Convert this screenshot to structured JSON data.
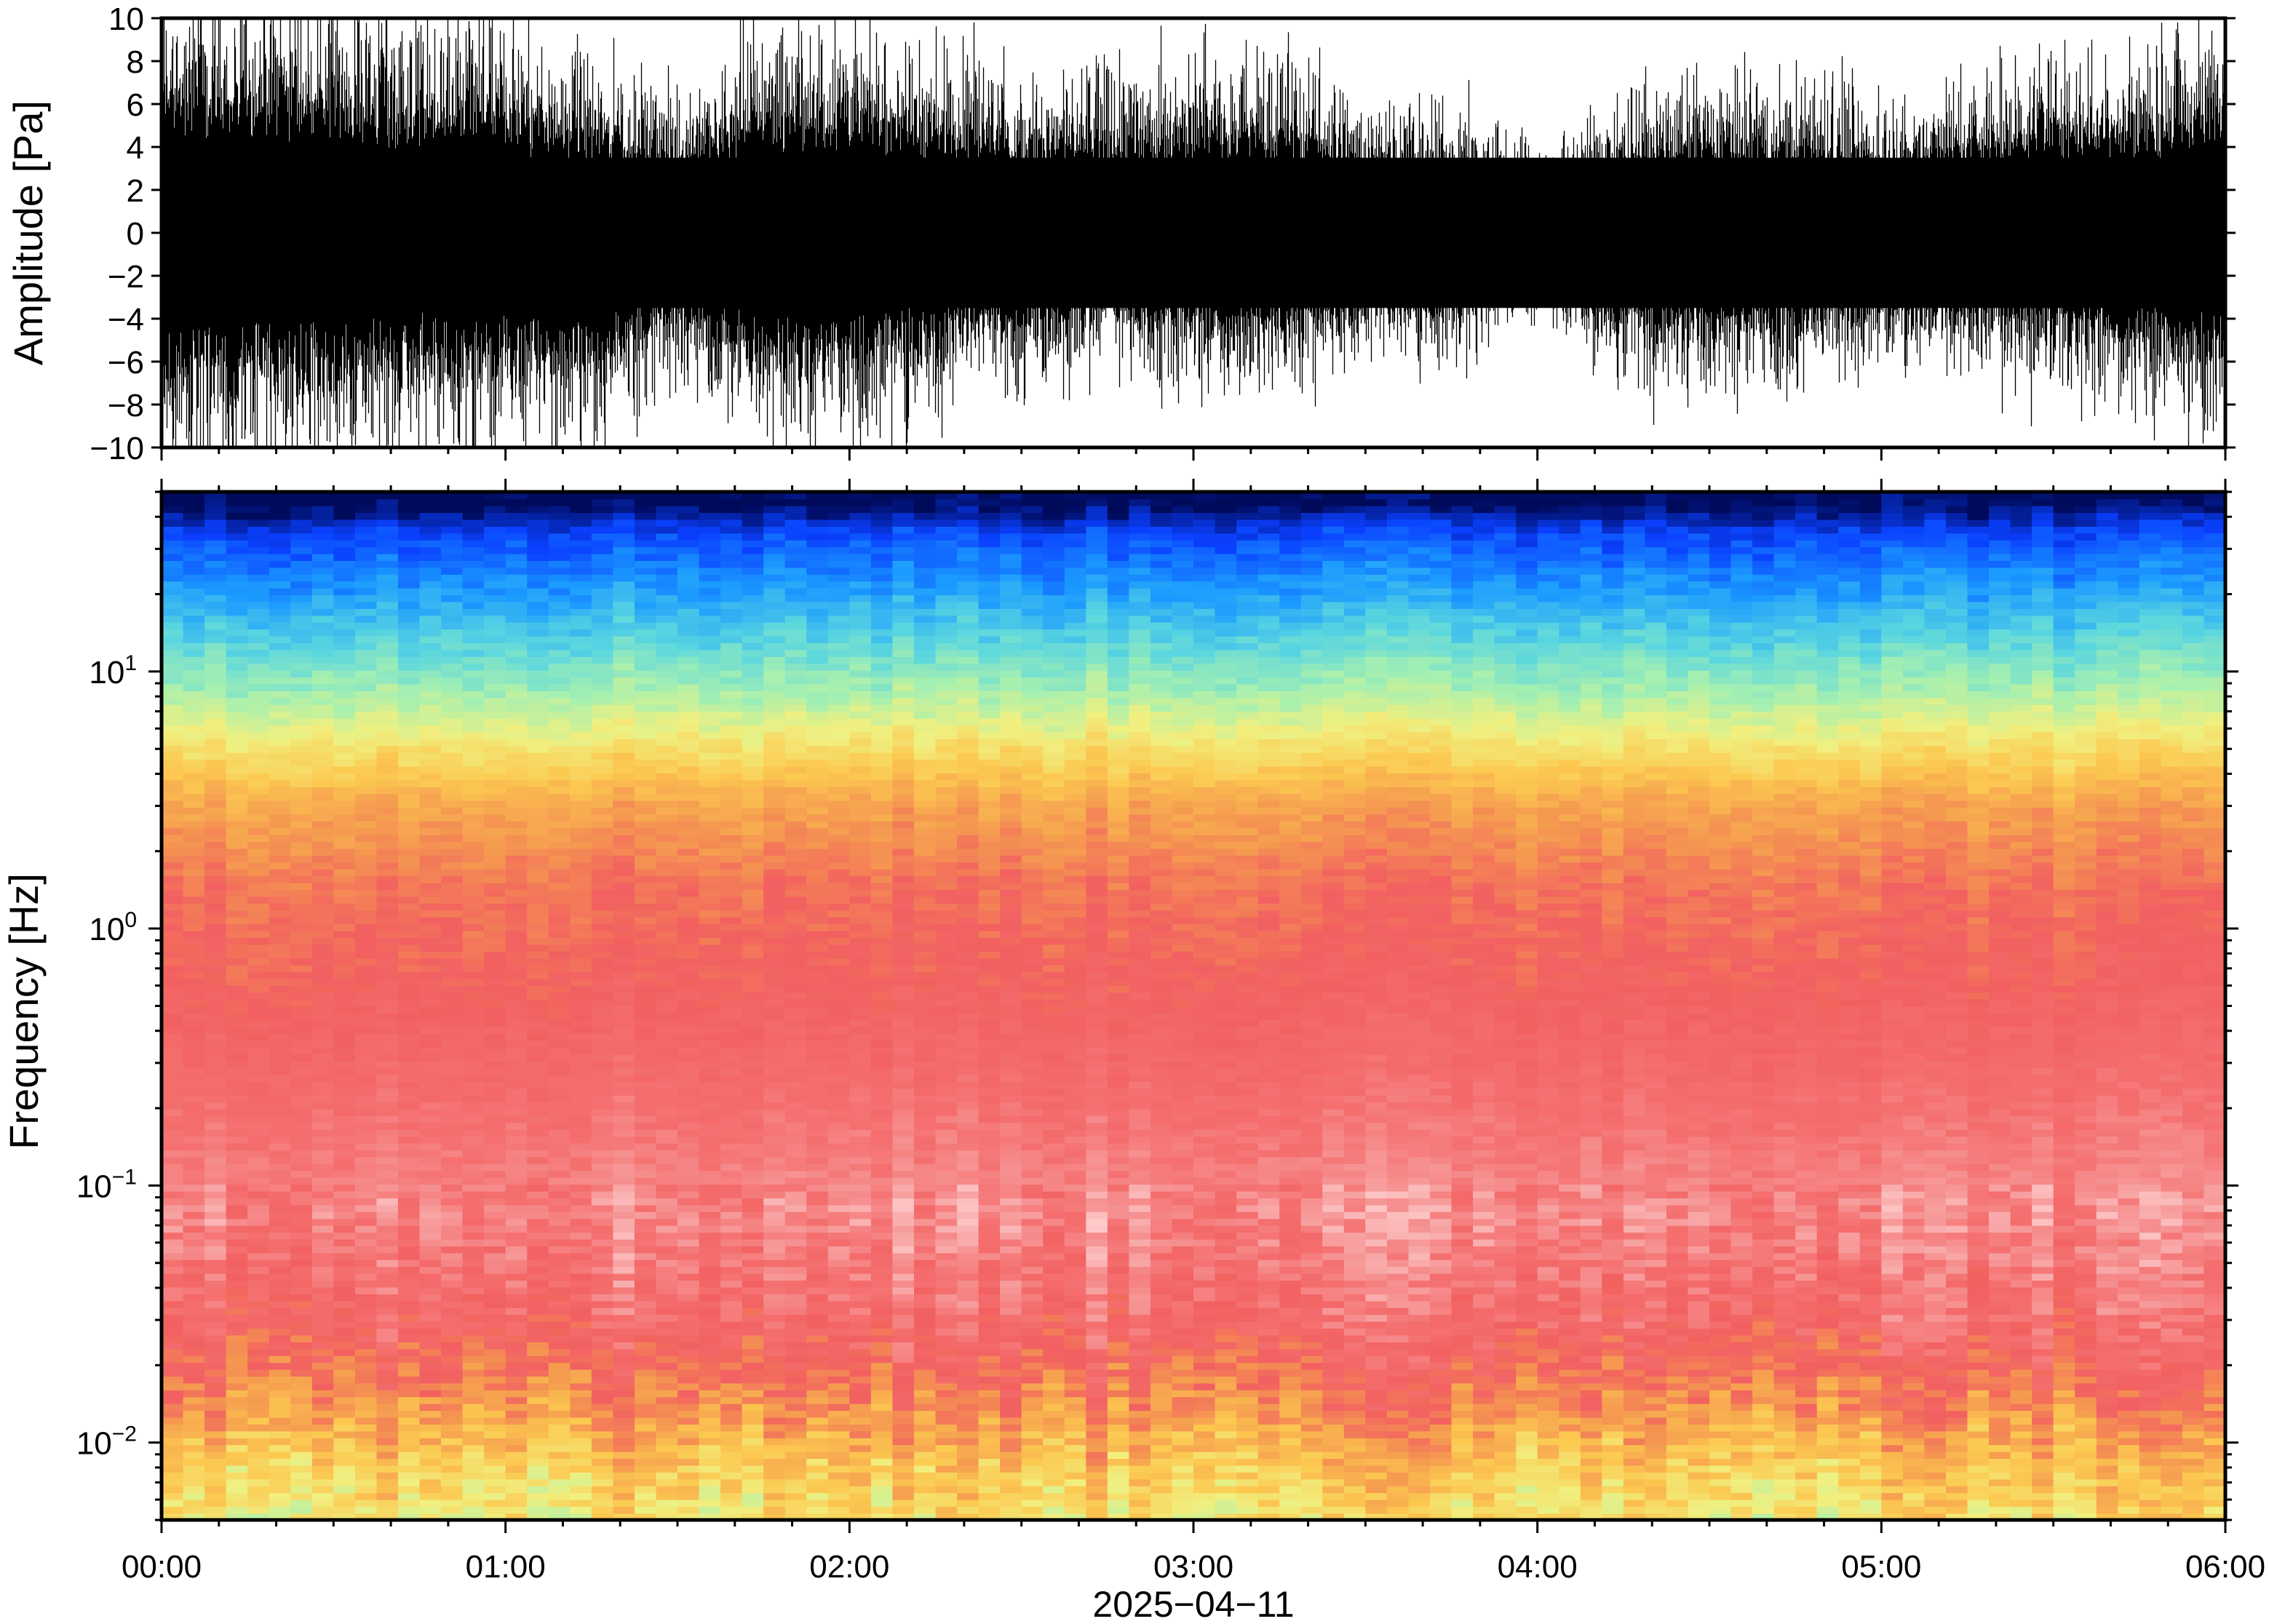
{
  "chart_data": [
    {
      "type": "line",
      "panel": "waveform",
      "ylabel": "Amplitude [Pa]",
      "xlabel": "",
      "ylim": [
        -10,
        10
      ],
      "xlim_hours": [
        0,
        6
      ],
      "y_ticks": [
        "10",
        "8",
        "6",
        "4",
        "2",
        "0",
        "−2",
        "−4",
        "−6",
        "−8",
        "−10"
      ],
      "y_tick_values": [
        10,
        8,
        6,
        4,
        2,
        0,
        -2,
        -4,
        -6,
        -8,
        -10
      ],
      "grid": false,
      "series": [
        {
          "color": "#000000",
          "envelope_hours": [
            0,
            0.25,
            0.5,
            0.75,
            1.0,
            1.25,
            1.5,
            1.75,
            2.0,
            2.25,
            2.5,
            2.75,
            3.0,
            3.25,
            3.5,
            3.75,
            4.0,
            4.25,
            4.5,
            4.75,
            5.0,
            5.25,
            5.5,
            5.75,
            6.0
          ],
          "envelope_upper_pa": [
            9,
            9,
            9,
            8,
            8,
            7,
            5,
            8,
            8,
            7,
            6,
            6,
            7,
            7,
            5,
            5,
            3,
            5,
            6,
            6,
            5,
            6,
            7,
            7,
            8
          ],
          "envelope_lower_pa": [
            -9,
            -9,
            -9,
            -8,
            -8,
            -8,
            -6,
            -8,
            -8,
            -7,
            -6,
            -5,
            -6,
            -6,
            -5,
            -5,
            -3,
            -6,
            -6,
            -6,
            -5,
            -5,
            -6,
            -7,
            -8
          ],
          "dense_core_pa": 3.5
        }
      ]
    },
    {
      "type": "heatmap",
      "panel": "spectrogram",
      "ylabel": "Frequency [Hz]",
      "xlabel": "2025−04−11",
      "x_ticks": [
        "00:00",
        "01:00",
        "02:00",
        "03:00",
        "04:00",
        "05:00",
        "06:00"
      ],
      "x_tick_hours": [
        0,
        1,
        2,
        3,
        4,
        5,
        6
      ],
      "y_scale": "log",
      "ylim_hz": [
        0.005,
        50
      ],
      "y_ticks": [
        {
          "base": "10",
          "exp": "−2",
          "value": 0.01
        },
        {
          "base": "10",
          "exp": "−1",
          "value": 0.1
        },
        {
          "base": "10",
          "exp": "0",
          "value": 1
        },
        {
          "base": "10",
          "exp": "1",
          "value": 10
        }
      ],
      "colormap": "rainbow (dark blue high power loss → pink)",
      "colormap_stops": [
        "#000a5a",
        "#0a40ff",
        "#1b9bff",
        "#5ad6e0",
        "#a6f0b0",
        "#f0f080",
        "#fcc850",
        "#f59a50",
        "#f26060",
        "#f57070",
        "#f7a0a0",
        "#ffd0d0"
      ],
      "grid": false,
      "frequency_bands_hz": [
        {
          "f": 45,
          "level": 0.0
        },
        {
          "f": 35,
          "level": 0.1
        },
        {
          "f": 20,
          "level": 0.2
        },
        {
          "f": 12,
          "level": 0.3
        },
        {
          "f": 8,
          "level": 0.38
        },
        {
          "f": 5,
          "level": 0.5
        },
        {
          "f": 3,
          "level": 0.62
        },
        {
          "f": 1.5,
          "level": 0.7
        },
        {
          "f": 0.6,
          "level": 0.74
        },
        {
          "f": 0.25,
          "level": 0.8
        },
        {
          "f": 0.08,
          "level": 0.88
        },
        {
          "f": 0.03,
          "level": 0.8
        },
        {
          "f": 0.015,
          "level": 0.68
        },
        {
          "f": 0.008,
          "level": 0.55
        },
        {
          "f": 0.005,
          "level": 0.5
        }
      ]
    }
  ]
}
